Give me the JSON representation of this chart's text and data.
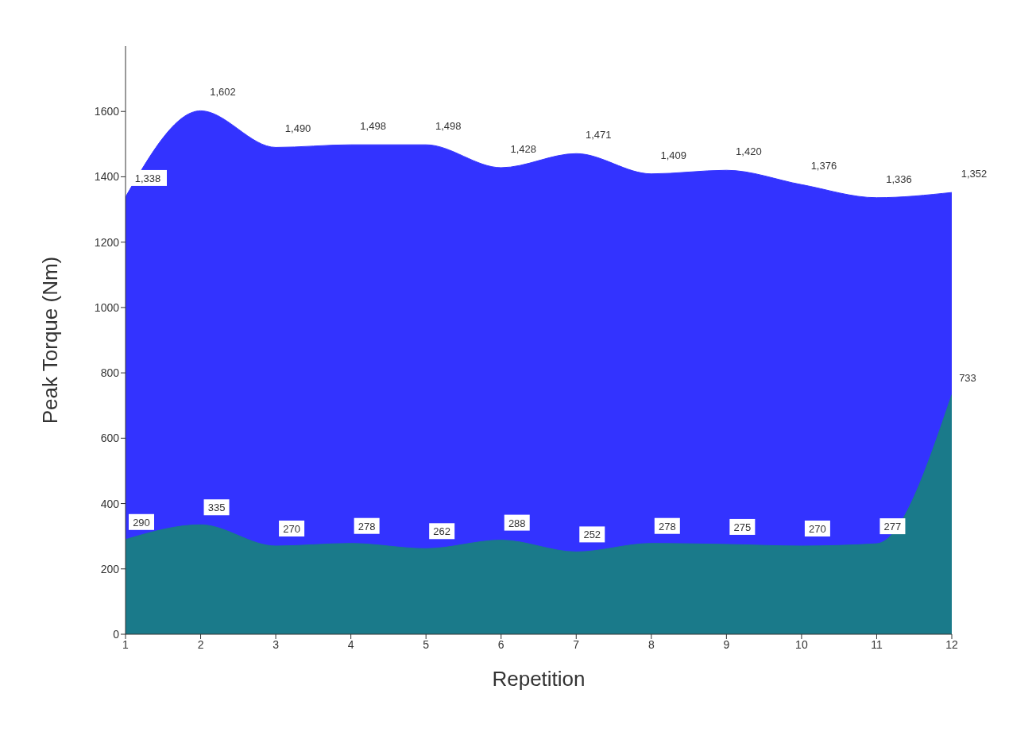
{
  "chart_data": {
    "type": "area",
    "xlabel": "Repetition",
    "ylabel": "Peak Torque (Nm)",
    "x": [
      1,
      2,
      3,
      4,
      5,
      6,
      7,
      8,
      9,
      10,
      11,
      12
    ],
    "xlim": [
      1,
      12
    ],
    "xticks": [
      1,
      2,
      3,
      4,
      5,
      6,
      7,
      8,
      9,
      10,
      11,
      12
    ],
    "ylim": [
      0,
      1800
    ],
    "yticks": [
      0,
      200,
      400,
      600,
      800,
      1000,
      1200,
      1400,
      1600
    ],
    "series": [
      {
        "color": "#3333ff",
        "values": [
          1338,
          1602,
          1490,
          1498,
          1498,
          1428,
          1471,
          1409,
          1420,
          1376,
          1336,
          1352
        ],
        "value_labels": [
          "1,338",
          "1,602",
          "1,490",
          "1,498",
          "1,498",
          "1,428",
          "1,471",
          "1,409",
          "1,420",
          "1,376",
          "1,336",
          "1,352"
        ]
      },
      {
        "color": "#1a7a8a",
        "values": [
          290,
          335,
          270,
          278,
          262,
          288,
          252,
          278,
          275,
          270,
          277,
          733
        ],
        "value_labels": [
          "290",
          "335",
          "270",
          "278",
          "262",
          "288",
          "252",
          "278",
          "275",
          "270",
          "277",
          "733"
        ]
      }
    ],
    "grid": false,
    "legend": false
  }
}
